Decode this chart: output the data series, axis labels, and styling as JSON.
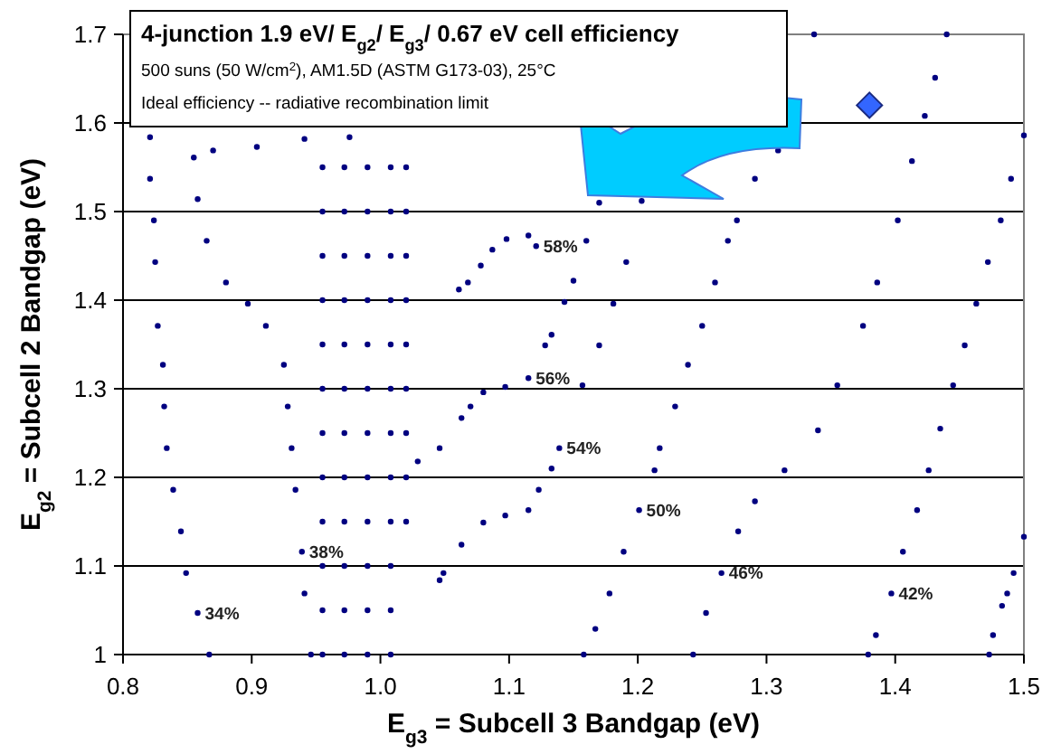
{
  "chart_data": {
    "type": "scatter",
    "title": "4-junction 1.9 eV/ E$_{g2}$/ E$_{g3}$/ 0.67 eV cell efficiency",
    "subtitle": "500 suns (50 W/cm$^{2}$), AM1.5D (ASTM G173-03), 25°C",
    "xlabel": "E$_{g3}$ = Subcell 3 Bandgap  (eV)",
    "ylabel": "E$_{g2}$ = Subcell 2 Bandgap  (eV)",
    "xlim": [
      0.8,
      1.5
    ],
    "ylim": [
      1,
      1.7
    ],
    "xticks": [
      0.8,
      0.9,
      {
        "value": 1,
        "label": "1.0"
      },
      1.1,
      1.2,
      1.3,
      1.4,
      1.5
    ],
    "yticks": [
      1,
      1.1,
      1.2,
      1.3,
      1.4,
      1.5,
      1.6,
      1.7
    ],
    "grid": "y",
    "marker": "circle",
    "series": [
      {
        "color": "#000080",
        "x": [
          0.821,
          0.821,
          0.824,
          0.825,
          0.827,
          0.831,
          0.832,
          0.834,
          0.839,
          0.845,
          0.849,
          0.858,
          0.867
        ],
        "values": [
          1.584,
          1.537,
          1.49,
          1.443,
          1.371,
          1.327,
          1.28,
          1.233,
          1.186,
          1.139,
          1.092,
          1.047,
          1.0
        ]
      },
      {
        "color": "#000080",
        "x": [
          0.976,
          0.941,
          0.904,
          0.87,
          0.855,
          0.858,
          0.865,
          0.88,
          0.897,
          0.911,
          0.925,
          0.928,
          0.931,
          0.934,
          0.939,
          0.941,
          0.946
        ],
        "values": [
          1.584,
          1.582,
          1.573,
          1.569,
          1.561,
          1.514,
          1.467,
          1.42,
          1.396,
          1.371,
          1.327,
          1.28,
          1.233,
          1.186,
          1.116,
          1.069,
          1.0
        ]
      },
      {
        "color": "#000080",
        "x": [
          0.955,
          0.955,
          0.955,
          0.955,
          0.955,
          0.955,
          0.955,
          0.955,
          0.955,
          0.955,
          0.955,
          0.955
        ],
        "values": [
          1.55,
          1.5,
          1.45,
          1.4,
          1.35,
          1.3,
          1.25,
          1.2,
          1.15,
          1.1,
          1.05,
          1.0
        ]
      },
      {
        "color": "#000080",
        "x": [
          0.972,
          0.972,
          0.972,
          0.972,
          0.972,
          0.972,
          0.972,
          0.972,
          0.972,
          0.972,
          0.972,
          0.972
        ],
        "values": [
          1.55,
          1.5,
          1.45,
          1.4,
          1.35,
          1.3,
          1.25,
          1.2,
          1.15,
          1.1,
          1.05,
          1.0
        ]
      },
      {
        "color": "#000080",
        "x": [
          0.99,
          0.99,
          0.99,
          0.99,
          0.99,
          0.99,
          0.99,
          0.99,
          0.99,
          0.99,
          0.99,
          0.99
        ],
        "values": [
          1.55,
          1.5,
          1.45,
          1.4,
          1.35,
          1.3,
          1.25,
          1.2,
          1.15,
          1.1,
          1.05,
          1.0
        ]
      },
      {
        "color": "#000080",
        "x": [
          1.008,
          1.008,
          1.008,
          1.008,
          1.008,
          1.008,
          1.008,
          1.008,
          1.008,
          1.008,
          1.008,
          1.008
        ],
        "values": [
          1.55,
          1.5,
          1.45,
          1.4,
          1.35,
          1.3,
          1.25,
          1.2,
          1.15,
          1.1,
          1.05,
          1.0
        ]
      },
      {
        "color": "#000080",
        "x": [
          1.02,
          1.02,
          1.02,
          1.02,
          1.02,
          1.02,
          1.02,
          1.02,
          1.02
        ],
        "values": [
          1.55,
          1.5,
          1.45,
          1.4,
          1.35,
          1.3,
          1.25,
          1.2,
          1.15
        ]
      },
      {
        "color": "#000080",
        "x": [
          1.061,
          1.068,
          1.078,
          1.087,
          1.098,
          1.115,
          1.121
        ],
        "values": [
          1.412,
          1.42,
          1.439,
          1.457,
          1.469,
          1.473,
          1.461
        ]
      },
      {
        "color": "#000080",
        "x": [
          1.17,
          1.16,
          1.15,
          1.143,
          1.133,
          1.128,
          1.115,
          1.097,
          1.08,
          1.07,
          1.063,
          1.046,
          1.029
        ],
        "values": [
          1.51,
          1.467,
          1.422,
          1.398,
          1.361,
          1.349,
          1.312,
          1.302,
          1.296,
          1.28,
          1.267,
          1.233,
          1.218
        ]
      },
      {
        "color": "#000080",
        "x": [
          1.203,
          1.191,
          1.181,
          1.17,
          1.157,
          1.139,
          1.133,
          1.123,
          1.115,
          1.097,
          1.08,
          1.063,
          1.049,
          1.046
        ],
        "values": [
          1.512,
          1.443,
          1.396,
          1.349,
          1.304,
          1.233,
          1.21,
          1.186,
          1.163,
          1.157,
          1.149,
          1.124,
          1.092,
          1.084
        ]
      },
      {
        "color": "#000080",
        "x": [
          1.337,
          1.309,
          1.291,
          1.277,
          1.27,
          1.26,
          1.25,
          1.239,
          1.229,
          1.217,
          1.213,
          1.201,
          1.189,
          1.178,
          1.167,
          1.158
        ],
        "values": [
          1.7,
          1.569,
          1.537,
          1.49,
          1.467,
          1.42,
          1.371,
          1.327,
          1.28,
          1.233,
          1.208,
          1.163,
          1.116,
          1.069,
          1.029,
          1.0
        ]
      },
      {
        "color": "#000080",
        "x": [
          1.44,
          1.431,
          1.423,
          1.413,
          1.402,
          1.386,
          1.375,
          1.355,
          1.34,
          1.314,
          1.291,
          1.278,
          1.265,
          1.253,
          1.243
        ],
        "values": [
          1.7,
          1.651,
          1.608,
          1.557,
          1.49,
          1.42,
          1.371,
          1.304,
          1.253,
          1.208,
          1.173,
          1.139,
          1.092,
          1.047,
          1.0
        ]
      },
      {
        "color": "#000080",
        "x": [
          1.5,
          1.49,
          1.482,
          1.472,
          1.463,
          1.454,
          1.445,
          1.435,
          1.426,
          1.417,
          1.406,
          1.397,
          1.385,
          1.379
        ],
        "values": [
          1.586,
          1.537,
          1.49,
          1.443,
          1.396,
          1.349,
          1.304,
          1.255,
          1.208,
          1.163,
          1.116,
          1.069,
          1.022,
          1.0
        ]
      },
      {
        "color": "#000080",
        "x": [
          1.5,
          1.492,
          1.487,
          1.483,
          1.476,
          1.473
        ],
        "values": [
          1.133,
          1.092,
          1.069,
          1.055,
          1.022,
          1.0
        ]
      },
      {
        "color": "#3366ff",
        "marker": "diamond",
        "x": [
          1.38
        ],
        "values": [
          1.62
        ]
      }
    ],
    "annotations": [
      "Ideal efficiency -- radiative recombination limit",
      {
        "text": "34%",
        "x": 0.858,
        "y": 1.047
      },
      {
        "text": "38%",
        "x": 0.939,
        "y": 1.116
      },
      {
        "text": "58%",
        "x": 1.121,
        "y": 1.461
      },
      {
        "text": "56%",
        "x": 1.115,
        "y": 1.312
      },
      {
        "text": "54%",
        "x": 1.139,
        "y": 1.233
      },
      {
        "text": "50%",
        "x": 1.201,
        "y": 1.163
      },
      {
        "text": "46%",
        "x": 1.265,
        "y": 1.092
      },
      {
        "text": "42%",
        "x": 1.397,
        "y": 1.069
      }
    ]
  }
}
